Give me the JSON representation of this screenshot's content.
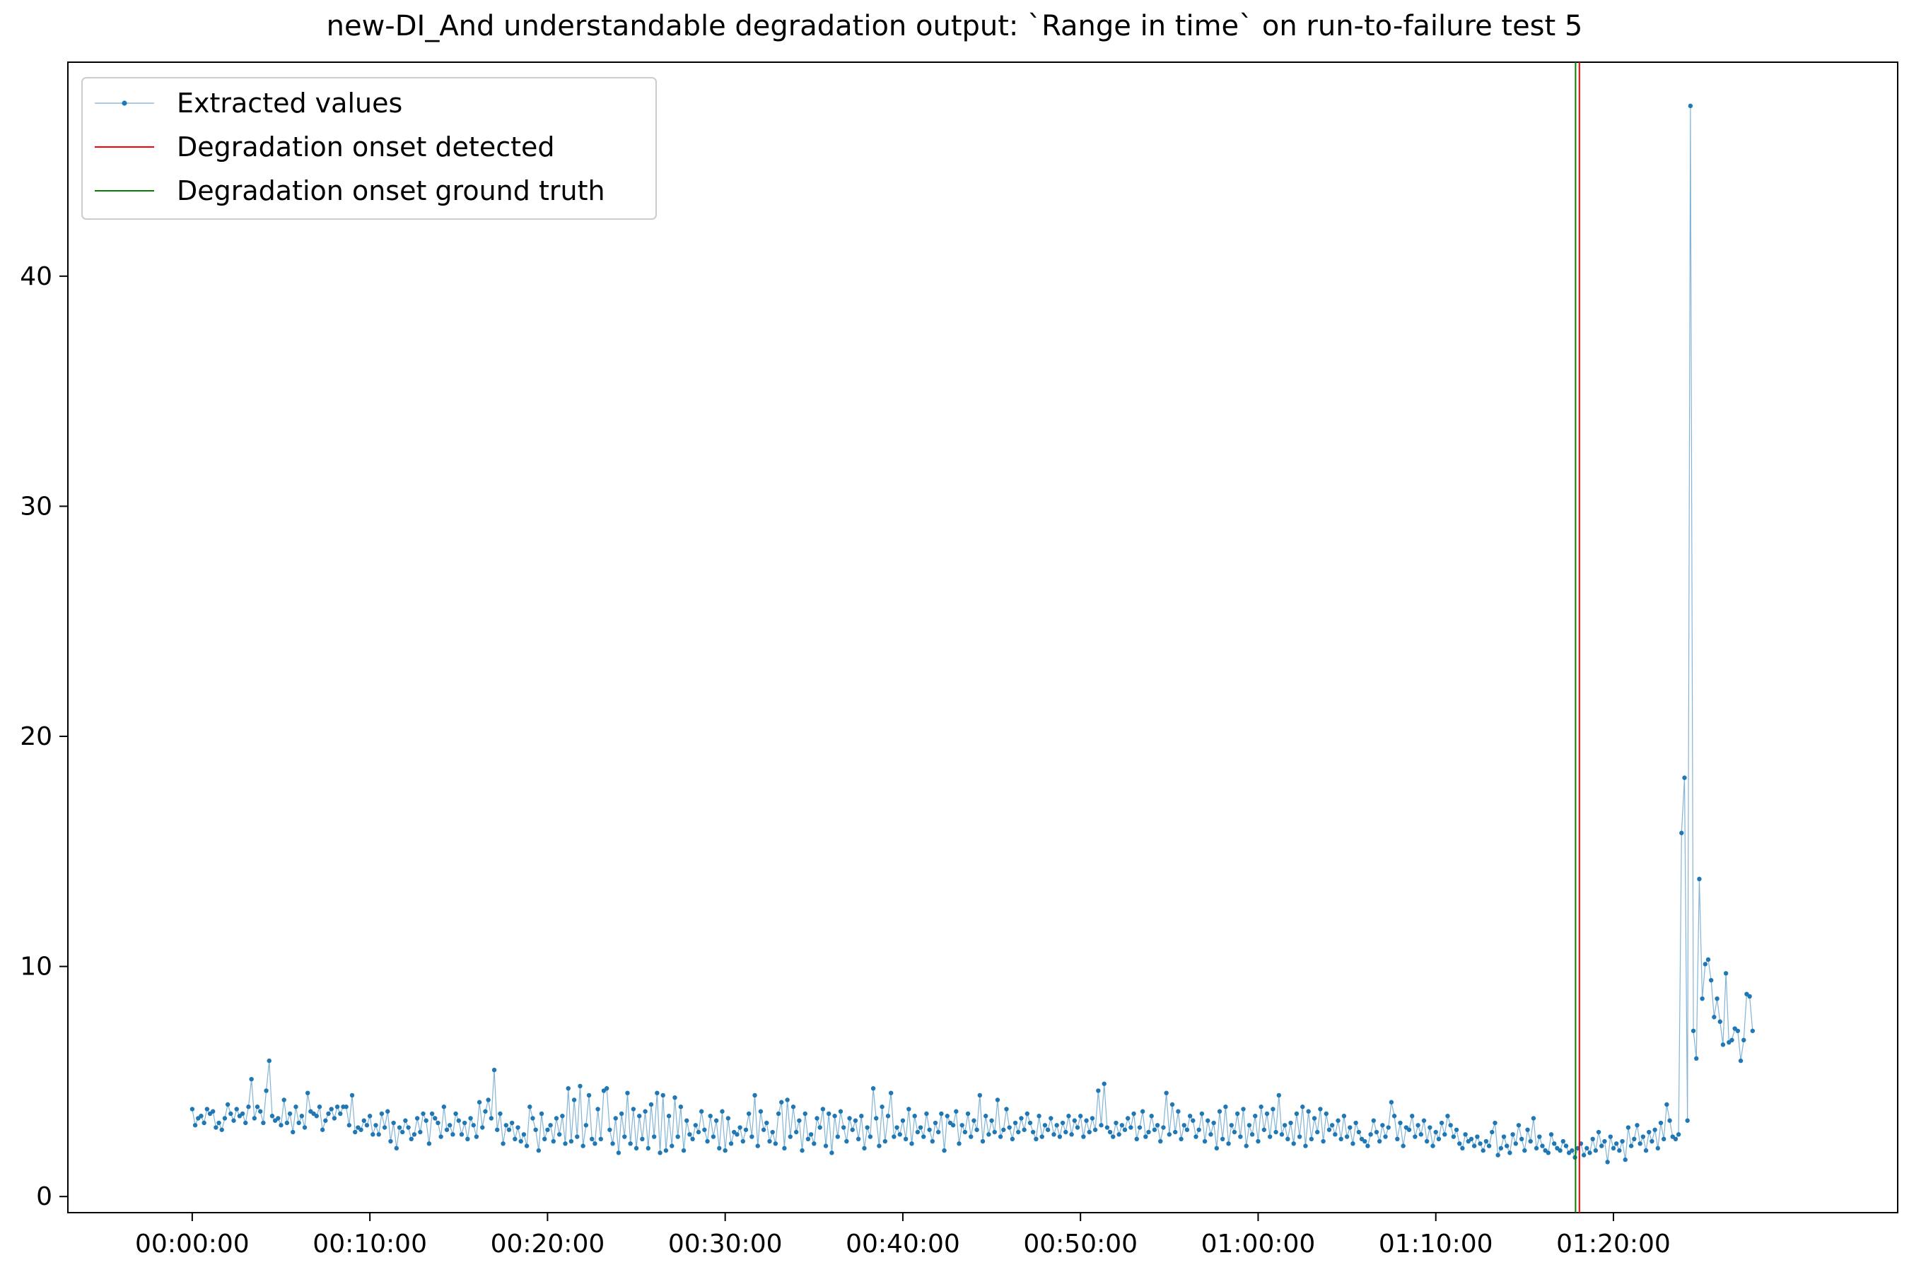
{
  "chart_data": {
    "type": "line",
    "title": "new-DI_And understandable degradation output: `Range in time` on run-to-failure test 5",
    "xlabel": "",
    "ylabel": "",
    "x_unit": "seconds",
    "xlim": [
      -420,
      5760
    ],
    "ylim": [
      -0.7,
      49.3
    ],
    "x_ticks": [
      {
        "value": 0,
        "label": "00:00:00"
      },
      {
        "value": 600,
        "label": "00:10:00"
      },
      {
        "value": 1200,
        "label": "00:20:00"
      },
      {
        "value": 1800,
        "label": "00:30:00"
      },
      {
        "value": 2400,
        "label": "00:40:00"
      },
      {
        "value": 3000,
        "label": "00:50:00"
      },
      {
        "value": 3600,
        "label": "01:00:00"
      },
      {
        "value": 4200,
        "label": "01:10:00"
      },
      {
        "value": 4800,
        "label": "01:20:00"
      }
    ],
    "y_ticks": [
      {
        "value": 0,
        "label": "0"
      },
      {
        "value": 10,
        "label": "10"
      },
      {
        "value": 20,
        "label": "20"
      },
      {
        "value": 30,
        "label": "30"
      },
      {
        "value": 40,
        "label": "40"
      }
    ],
    "grid": false,
    "legend_position": "top-left",
    "series": [
      {
        "name": "Extracted values",
        "color": "#1f77b4",
        "x_start": 0,
        "x_step": 10,
        "values": [
          3.8,
          3.1,
          3.4,
          3.5,
          3.2,
          3.8,
          3.6,
          3.7,
          3.0,
          3.2,
          2.9,
          3.4,
          4.0,
          3.6,
          3.3,
          3.8,
          3.5,
          3.6,
          3.2,
          3.9,
          5.1,
          3.4,
          3.9,
          3.7,
          3.2,
          4.6,
          5.9,
          3.5,
          3.3,
          3.4,
          3.1,
          4.2,
          3.2,
          3.6,
          2.8,
          3.9,
          3.2,
          3.5,
          3.0,
          4.5,
          3.7,
          3.6,
          3.5,
          3.9,
          2.9,
          3.3,
          3.6,
          3.8,
          3.4,
          3.9,
          3.6,
          3.9,
          3.9,
          3.1,
          4.4,
          2.8,
          3.0,
          2.9,
          3.3,
          3.1,
          3.5,
          2.7,
          3.1,
          2.7,
          3.6,
          3.0,
          3.7,
          2.4,
          3.2,
          2.1,
          3.0,
          2.8,
          3.3,
          3.0,
          2.5,
          2.7,
          3.4,
          2.8,
          3.6,
          3.3,
          2.3,
          3.6,
          3.4,
          3.2,
          2.6,
          3.9,
          2.9,
          3.1,
          2.7,
          3.6,
          3.3,
          2.7,
          3.2,
          2.5,
          3.4,
          3.1,
          2.6,
          4.1,
          3.0,
          3.7,
          4.2,
          3.4,
          5.5,
          2.9,
          3.6,
          2.3,
          3.1,
          2.9,
          3.2,
          2.5,
          3.0,
          2.4,
          2.7,
          2.2,
          3.9,
          3.4,
          2.9,
          2.0,
          3.6,
          2.5,
          2.9,
          3.1,
          2.4,
          3.4,
          2.7,
          3.5,
          2.3,
          4.7,
          2.4,
          4.2,
          2.6,
          4.8,
          2.2,
          3.1,
          4.4,
          2.5,
          2.3,
          3.8,
          2.5,
          4.6,
          4.7,
          2.9,
          2.3,
          3.4,
          1.9,
          3.6,
          2.6,
          4.5,
          2.3,
          3.8,
          2.1,
          3.5,
          2.5,
          3.7,
          2.1,
          4.0,
          2.6,
          4.5,
          1.9,
          4.4,
          2.0,
          3.5,
          2.2,
          4.3,
          2.6,
          3.9,
          2.0,
          3.3,
          2.7,
          2.5,
          3.1,
          2.8,
          3.7,
          2.9,
          2.4,
          3.5,
          2.6,
          3.3,
          2.1,
          3.7,
          2.0,
          3.4,
          2.3,
          2.8,
          2.7,
          3.0,
          2.4,
          2.9,
          3.6,
          2.6,
          4.4,
          2.2,
          3.7,
          2.9,
          3.2,
          2.4,
          2.8,
          2.3,
          3.6,
          4.1,
          2.1,
          4.2,
          2.6,
          3.9,
          2.8,
          3.3,
          2.0,
          3.6,
          2.5,
          2.7,
          2.3,
          3.4,
          3.0,
          3.8,
          2.2,
          3.6,
          1.9,
          3.5,
          2.6,
          3.7,
          3.0,
          2.4,
          3.4,
          2.9,
          3.3,
          2.5,
          3.5,
          2.1,
          3.0,
          2.6,
          4.7,
          3.4,
          2.2,
          3.9,
          2.4,
          3.5,
          4.5,
          2.6,
          3.0,
          2.7,
          3.3,
          2.5,
          3.8,
          2.3,
          3.5,
          2.8,
          3.0,
          2.6,
          3.6,
          2.9,
          2.4,
          3.2,
          2.8,
          3.6,
          2.0,
          3.5,
          3.2,
          3.1,
          3.7,
          2.3,
          3.1,
          2.8,
          3.6,
          2.6,
          3.3,
          2.9,
          4.4,
          2.4,
          3.5,
          2.7,
          3.3,
          2.8,
          4.2,
          2.6,
          2.9,
          3.8,
          3.0,
          2.5,
          3.2,
          2.8,
          3.4,
          2.9,
          3.6,
          3.2,
          2.8,
          2.5,
          3.5,
          2.6,
          3.1,
          2.9,
          3.4,
          2.7,
          3.1,
          2.6,
          3.2,
          2.8,
          3.5,
          2.7,
          3.3,
          3.0,
          3.5,
          2.6,
          3.3,
          2.8,
          3.4,
          2.9,
          4.6,
          3.1,
          4.9,
          3.0,
          2.8,
          2.6,
          3.2,
          2.7,
          3.1,
          2.9,
          3.4,
          3.0,
          3.6,
          2.5,
          3.0,
          3.7,
          2.6,
          2.8,
          3.5,
          2.9,
          3.1,
          2.4,
          3.0,
          4.5,
          2.7,
          4.0,
          2.8,
          3.7,
          2.5,
          3.1,
          2.9,
          3.5,
          3.3,
          2.6,
          2.9,
          3.6,
          2.4,
          3.3,
          2.7,
          3.2,
          2.1,
          3.7,
          2.5,
          3.9,
          2.3,
          3.1,
          2.8,
          3.6,
          2.6,
          3.8,
          2.2,
          3.1,
          2.7,
          3.5,
          2.4,
          3.9,
          2.9,
          3.6,
          2.6,
          3.8,
          2.8,
          4.4,
          2.7,
          3.1,
          2.5,
          3.2,
          2.3,
          3.6,
          2.6,
          3.9,
          2.2,
          3.7,
          2.5,
          3.4,
          2.8,
          3.8,
          2.4,
          3.6,
          2.9,
          3.1,
          2.7,
          3.3,
          2.5,
          3.5,
          2.6,
          3.0,
          2.3,
          3.2,
          2.8,
          2.5,
          2.4,
          2.2,
          2.7,
          3.3,
          2.8,
          2.4,
          3.1,
          2.6,
          3.0,
          4.1,
          3.5,
          2.5,
          3.2,
          2.2,
          3.0,
          2.9,
          3.5,
          2.6,
          3.1,
          2.7,
          3.3,
          2.4,
          3.0,
          2.2,
          2.8,
          2.5,
          3.2,
          2.7,
          3.5,
          3.1,
          2.6,
          2.9,
          2.3,
          2.1,
          2.7,
          2.4,
          2.5,
          2.2,
          2.6,
          2.3,
          2.0,
          2.4,
          2.2,
          2.8,
          3.2,
          1.8,
          2.1,
          2.6,
          2.2,
          1.9,
          2.7,
          2.3,
          3.1,
          2.5,
          2.0,
          2.9,
          2.4,
          3.4,
          2.1,
          2.6,
          2.2,
          2.0,
          1.9,
          2.7,
          2.3,
          2.1,
          2.0,
          2.4,
          2.2,
          1.9,
          2.0,
          1.7,
          2.1,
          2.3,
          1.8,
          2.1,
          1.9,
          2.5,
          2.0,
          2.8,
          2.2,
          2.4,
          1.5,
          2.6,
          2.1,
          2.3,
          2.0,
          2.4,
          1.6,
          3.0,
          2.2,
          2.5,
          3.1,
          2.3,
          2.6,
          2.0,
          2.8,
          2.4,
          2.9,
          2.1,
          3.2,
          2.5,
          4.0,
          3.3,
          2.6,
          2.5,
          2.7,
          15.8,
          18.2,
          3.3,
          47.4,
          7.2,
          6.0,
          13.8,
          8.6,
          10.1,
          10.3,
          9.4,
          7.8,
          8.6,
          7.6,
          6.6,
          9.7,
          6.7,
          6.8,
          7.3,
          7.2,
          5.9,
          6.8,
          8.8,
          8.7,
          7.2
        ]
      },
      {
        "name": "Degradation onset detected",
        "color": "#ff0000",
        "kind": "vline",
        "x": 4685
      },
      {
        "name": "Degradation onset ground truth",
        "color": "#008000",
        "kind": "vline",
        "x": 4672
      }
    ]
  }
}
